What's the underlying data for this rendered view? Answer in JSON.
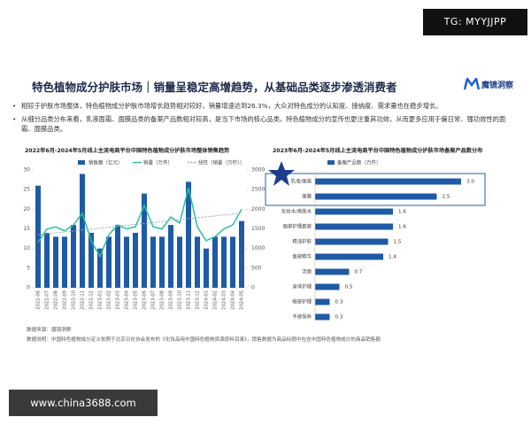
{
  "header": {
    "title": "特色植物成分护肤市场｜销量呈稳定高增趋势，从基础品类逐步渗透消费者",
    "logo": "魔镜洞察",
    "watermark": "TG: MYYJJPP"
  },
  "bullets": [
    "相较于护肤市场整体，特色植物成分护肤市场增长趋势相对较好，销量增速达到26.3%，大众对特色成分的认知度、接纳度、需求量也在稳步增长。",
    "从细分品类分布来看，乳液面霜、面膜品类的备案产品数相对较高，是当下市场的核心品类。特色植物成分的宣传也更注重其功效，从而更多应用于偏日常、强功效性的面霜、面膜品类。"
  ],
  "chart_data": [
    {
      "type": "bar",
      "title": "2022年6月-2024年5月线上主流电商平台中国特色植物成分护肤市场整体销售趋势",
      "categories": [
        "2022-06",
        "2022-07",
        "2022-08",
        "2022-09",
        "2022-10",
        "2022-11",
        "2022-12",
        "2023-01",
        "2023-02",
        "2023-03",
        "2023-04",
        "2023-05",
        "2023-06",
        "2023-07",
        "2023-08",
        "2023-09",
        "2023-10",
        "2023-11",
        "2023-12",
        "2024-01",
        "2024-02",
        "2024-03",
        "2024-04",
        "2024-05"
      ],
      "series": [
        {
          "name": "销售额（亿元）",
          "type": "bar",
          "color": "#1f5aa6",
          "values": [
            26,
            14,
            13,
            13,
            16,
            29,
            14,
            10,
            13,
            16,
            13,
            14,
            24,
            13,
            13,
            16,
            13,
            27,
            13,
            10,
            13,
            13,
            13,
            17
          ]
        },
        {
          "name": "销量（万件）",
          "type": "line",
          "axis": "y2",
          "color": "#2bbf9a",
          "values": [
            1150,
            1500,
            1550,
            1450,
            1600,
            1900,
            1200,
            800,
            1350,
            1600,
            1500,
            1550,
            2100,
            1550,
            1500,
            1800,
            1650,
            2550,
            1550,
            1200,
            1300,
            1500,
            1600,
            2000
          ]
        },
        {
          "name": "线性（销量（万件））",
          "type": "line",
          "style": "dashed",
          "axis": "y2",
          "color": "#8fa8c8",
          "values": [
            1350,
            1374,
            1398,
            1422,
            1446,
            1470,
            1494,
            1518,
            1542,
            1566,
            1590,
            1614,
            1638,
            1662,
            1686,
            1710,
            1734,
            1758,
            1782,
            1806,
            1830,
            1854,
            1878,
            1902
          ]
        }
      ],
      "ylim": [
        0,
        30
      ],
      "yticks": [
        0,
        5,
        10,
        15,
        20,
        25,
        30
      ],
      "y2lim": [
        0,
        3000
      ],
      "y2ticks": [
        0,
        500,
        1000,
        1500,
        2000,
        2500,
        3000
      ],
      "grid": false,
      "legend": "top"
    },
    {
      "type": "barh",
      "title": "2023年6月-2024年5月线上主流电商平台中国特色植物成分护肤市场备案产品数分布",
      "categories": [
        "乳液/面霜",
        "面膜",
        "化妆水/爽肤水",
        "面部护理套装",
        "精油护肤",
        "面部精华",
        "洁面",
        "身体护理",
        "眼部护理",
        "手部保养"
      ],
      "series": [
        {
          "name": "备案产品数（万件）",
          "color": "#1f5aa6",
          "values": [
            3,
            2.5,
            1.6,
            1.6,
            1.5,
            1.4,
            0.7,
            0.5,
            0.3,
            0.3
          ],
          "value_labels": [
            "3.0",
            "2.5",
            "1.6",
            "1.6",
            "1.5",
            "1.4",
            "0.7",
            "0.5",
            "0.3",
            "0.3"
          ]
        }
      ],
      "legend": "top"
    }
  ],
  "notes": [
    "数据来源：魔镜洞察",
    "数据说明：中国特色植物成分定义依照于北京日化协会发布的《化妆品用中国特色植物资源原料目录》，销售数据为商品标题中包含中国特色植物成分的商品销售额"
  ],
  "footer": "www.china3688.com"
}
